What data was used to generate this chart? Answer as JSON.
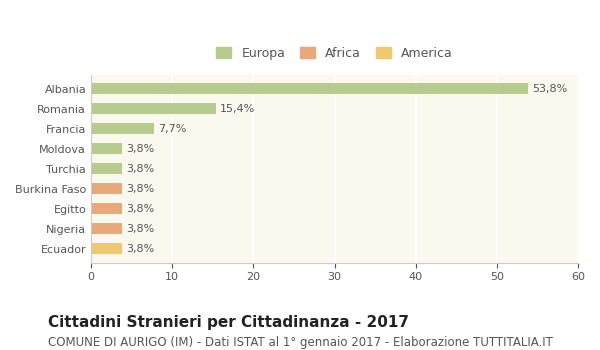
{
  "categories": [
    "Albania",
    "Romania",
    "Francia",
    "Moldova",
    "Turchia",
    "Burkina Faso",
    "Egitto",
    "Nigeria",
    "Ecuador"
  ],
  "values": [
    53.8,
    15.4,
    7.7,
    3.8,
    3.8,
    3.8,
    3.8,
    3.8,
    3.8
  ],
  "labels": [
    "53,8%",
    "15,4%",
    "7,7%",
    "3,8%",
    "3,8%",
    "3,8%",
    "3,8%",
    "3,8%",
    "3,8%"
  ],
  "colors": [
    "#b5cc8e",
    "#b5cc8e",
    "#b5cc8e",
    "#b5cc8e",
    "#b5cc8e",
    "#e8a87c",
    "#e8a87c",
    "#e8a87c",
    "#f0c96e"
  ],
  "legend": [
    {
      "label": "Europa",
      "color": "#b5cc8e"
    },
    {
      "label": "Africa",
      "color": "#e8a87c"
    },
    {
      "label": "America",
      "color": "#f0c96e"
    }
  ],
  "xlim": [
    0,
    60
  ],
  "xticks": [
    0,
    10,
    20,
    30,
    40,
    50,
    60
  ],
  "title": "Cittadini Stranieri per Cittadinanza - 2017",
  "subtitle": "COMUNE DI AURIGO (IM) - Dati ISTAT al 1° gennaio 2017 - Elaborazione TUTTITALIA.IT",
  "bg_color": "#ffffff",
  "plot_bg_color": "#f9f9f0",
  "grid_color": "#ffffff",
  "bar_height": 0.55,
  "title_fontsize": 11,
  "subtitle_fontsize": 8.5,
  "label_fontsize": 8,
  "tick_fontsize": 8,
  "legend_fontsize": 9
}
